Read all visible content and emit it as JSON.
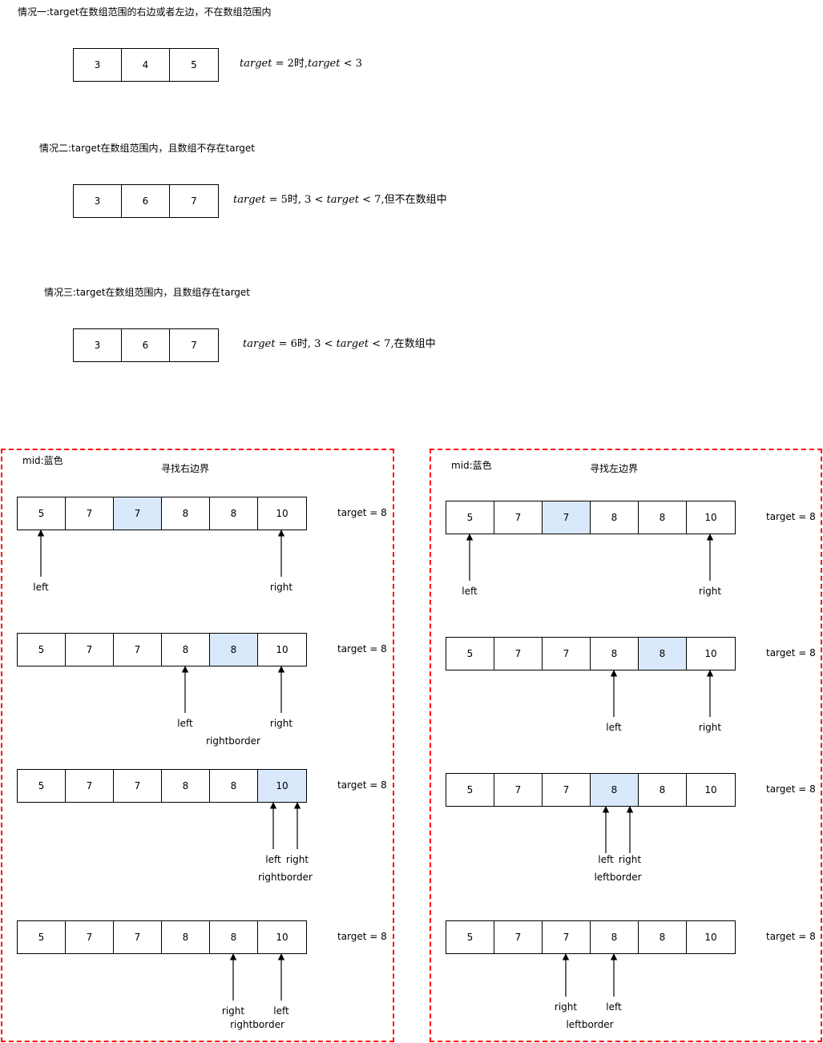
{
  "cases": [
    {
      "title": "情况一:target在数组范围的右边或者左边，不在数组范围内",
      "cells": [
        "3",
        "4",
        "5"
      ],
      "formula": {
        "var": "target",
        "eq": " = 2",
        "suffix": "时,",
        "var2": "target",
        "rel": " < 3",
        "tail": ""
      }
    },
    {
      "title": "情况二:target在数组范围内，且数组不存在target",
      "cells": [
        "3",
        "6",
        "7"
      ],
      "formula": {
        "var": "target",
        "eq": " = 5",
        "suffix": "时, 3 < ",
        "var2": "target",
        "rel": " < 7,",
        "tail": "但不在数组中"
      }
    },
    {
      "title": "情况三:target在数组范围内，且数组存在target",
      "cells": [
        "3",
        "6",
        "7"
      ],
      "formula": {
        "var": "target",
        "eq": " = 6",
        "suffix": "时, 3 < ",
        "var2": "target",
        "rel": " < 7,",
        "tail": "在数组中"
      }
    }
  ],
  "colors": {
    "mid": "#dae8fc",
    "frame": "#ff0000"
  },
  "panels": [
    {
      "legend": "mid:蓝色",
      "title": "寻找右边界",
      "steps": [
        {
          "cells": [
            "5",
            "7",
            "7",
            "8",
            "8",
            "10"
          ],
          "mid_index": 2,
          "target": "target = 8",
          "pointers": [
            {
              "index": 0,
              "label": "left"
            },
            {
              "index": 5,
              "label": "right"
            }
          ],
          "border": ""
        },
        {
          "cells": [
            "5",
            "7",
            "7",
            "8",
            "8",
            "10"
          ],
          "mid_index": 4,
          "target": "target = 8",
          "pointers": [
            {
              "index": 3,
              "label": "left"
            },
            {
              "index": 5,
              "label": "right"
            }
          ],
          "border": "rightborder"
        },
        {
          "cells": [
            "5",
            "7",
            "7",
            "8",
            "8",
            "10"
          ],
          "mid_index": 5,
          "target": "target = 8",
          "pointers": [
            {
              "index": 5,
              "label": "left"
            },
            {
              "index": 5,
              "label": "right"
            }
          ],
          "border": "rightborder"
        },
        {
          "cells": [
            "5",
            "7",
            "7",
            "8",
            "8",
            "10"
          ],
          "mid_index": -1,
          "target": "target = 8",
          "pointers": [
            {
              "index": 4,
              "label": "right"
            },
            {
              "index": 5,
              "label": "left"
            }
          ],
          "border": "rightborder"
        }
      ]
    },
    {
      "legend": "mid:蓝色",
      "title": "寻找左边界",
      "steps": [
        {
          "cells": [
            "5",
            "7",
            "7",
            "8",
            "8",
            "10"
          ],
          "mid_index": 2,
          "target": "target = 8",
          "pointers": [
            {
              "index": 0,
              "label": "left"
            },
            {
              "index": 5,
              "label": "right"
            }
          ],
          "border": ""
        },
        {
          "cells": [
            "5",
            "7",
            "7",
            "8",
            "8",
            "10"
          ],
          "mid_index": 4,
          "target": "target = 8",
          "pointers": [
            {
              "index": 3,
              "label": "left"
            },
            {
              "index": 5,
              "label": "right"
            }
          ],
          "border": ""
        },
        {
          "cells": [
            "5",
            "7",
            "7",
            "8",
            "8",
            "10"
          ],
          "mid_index": 3,
          "target": "target = 8",
          "pointers": [
            {
              "index": 3,
              "label": "left"
            },
            {
              "index": 3,
              "label": "right"
            }
          ],
          "border": "leftborder"
        },
        {
          "cells": [
            "5",
            "7",
            "7",
            "8",
            "8",
            "10"
          ],
          "mid_index": -1,
          "target": "target = 8",
          "pointers": [
            {
              "index": 2,
              "label": "right"
            },
            {
              "index": 3,
              "label": "left"
            }
          ],
          "border": "leftborder"
        }
      ]
    }
  ]
}
